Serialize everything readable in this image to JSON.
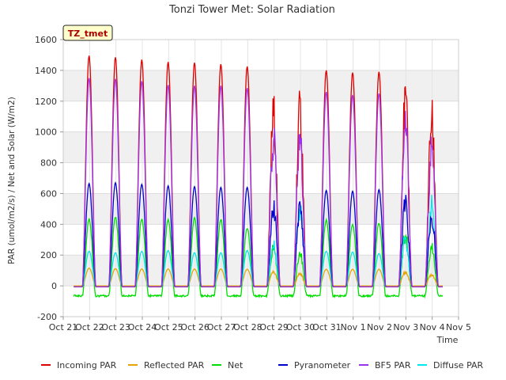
{
  "chart_data": {
    "type": "line",
    "title": "Tonzi Tower Met: Solar Radiation",
    "xlabel": "Time",
    "ylabel": "PAR (umol/m2/s) / Net and Solar (W/m2)",
    "ylim": [
      -200,
      1600
    ],
    "yticks": [
      -200,
      0,
      200,
      400,
      600,
      800,
      1000,
      1200,
      1400,
      1600
    ],
    "xlim": [
      0,
      15
    ],
    "xticks": [
      {
        "v": 0,
        "label": "Oct 21"
      },
      {
        "v": 1,
        "label": "Oct 22"
      },
      {
        "v": 2,
        "label": "Oct 23"
      },
      {
        "v": 3,
        "label": "Oct 24"
      },
      {
        "v": 4,
        "label": "Oct 25"
      },
      {
        "v": 5,
        "label": "Oct 26"
      },
      {
        "v": 6,
        "label": "Oct 27"
      },
      {
        "v": 7,
        "label": "Oct 28"
      },
      {
        "v": 8,
        "label": "Oct 29"
      },
      {
        "v": 9,
        "label": "Oct 30"
      },
      {
        "v": 10,
        "label": "Oct 31"
      },
      {
        "v": 11,
        "label": "Nov 1"
      },
      {
        "v": 12,
        "label": "Nov 2"
      },
      {
        "v": 13,
        "label": "Nov 3"
      },
      {
        "v": 14,
        "label": "Nov 4"
      },
      {
        "v": 15,
        "label": "Nov 5"
      }
    ],
    "grid": true,
    "legend_position": "bottom",
    "site_label": "TZ_tmet",
    "day_start": 0.4,
    "day_end": 14.4,
    "series": [
      {
        "name": "Incoming PAR",
        "color": "#dd0000",
        "night": -5,
        "peaks": [
          1495,
          1485,
          1470,
          1455,
          1450,
          1440,
          1425,
          1270,
          1290,
          1400,
          1385,
          1390,
          1355,
          1230
        ]
      },
      {
        "name": "Reflected PAR",
        "color": "#e6a400",
        "night": 0,
        "peaks": [
          115,
          112,
          110,
          110,
          110,
          110,
          108,
          100,
          90,
          108,
          108,
          108,
          100,
          85
        ]
      },
      {
        "name": "Net",
        "color": "#00dd00",
        "night": -65,
        "peaks": [
          435,
          445,
          435,
          430,
          440,
          430,
          375,
          285,
          250,
          425,
          400,
          410,
          380,
          285
        ]
      },
      {
        "name": "Pyranometer",
        "color": "#0000cc",
        "night": -5,
        "peaks": [
          665,
          670,
          660,
          650,
          645,
          640,
          640,
          570,
          575,
          620,
          615,
          625,
          605,
          500
        ]
      },
      {
        "name": "BF5 PAR",
        "color": "#9933ee",
        "night": -5,
        "peaks": [
          1350,
          1345,
          1330,
          1305,
          1300,
          1300,
          1285,
          1090,
          1090,
          1260,
          1240,
          1250,
          1230,
          1000
        ]
      },
      {
        "name": "Diffuse PAR",
        "color": "#00e5ee",
        "night": -5,
        "peaks": [
          225,
          215,
          225,
          230,
          215,
          215,
          230,
          300,
          560,
          225,
          220,
          210,
          330,
          595
        ]
      }
    ]
  }
}
